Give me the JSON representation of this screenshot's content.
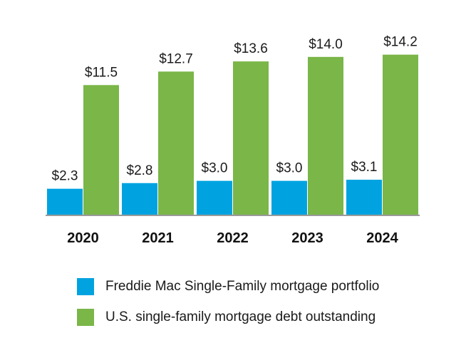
{
  "chart_data": {
    "type": "bar",
    "categories": [
      "2020",
      "2021",
      "2022",
      "2023",
      "2024"
    ],
    "series": [
      {
        "name": "Freddie Mac Single-Family mortgage portfolio",
        "color": "#00a3e0",
        "values": [
          2.3,
          2.8,
          3.0,
          3.0,
          3.1
        ],
        "labels": [
          "$2.3",
          "$2.8",
          "$3.0",
          "$3.0",
          "$3.1"
        ]
      },
      {
        "name": "U.S. single-family mortgage debt outstanding",
        "color": "#7ab648",
        "values": [
          11.5,
          12.7,
          13.6,
          14.0,
          14.2
        ],
        "labels": [
          "$11.5",
          "$12.7",
          "$13.6",
          "$14.0",
          "$14.2"
        ]
      }
    ],
    "ylim": [
      0,
      16
    ],
    "grid": false,
    "legend_position": "bottom"
  }
}
